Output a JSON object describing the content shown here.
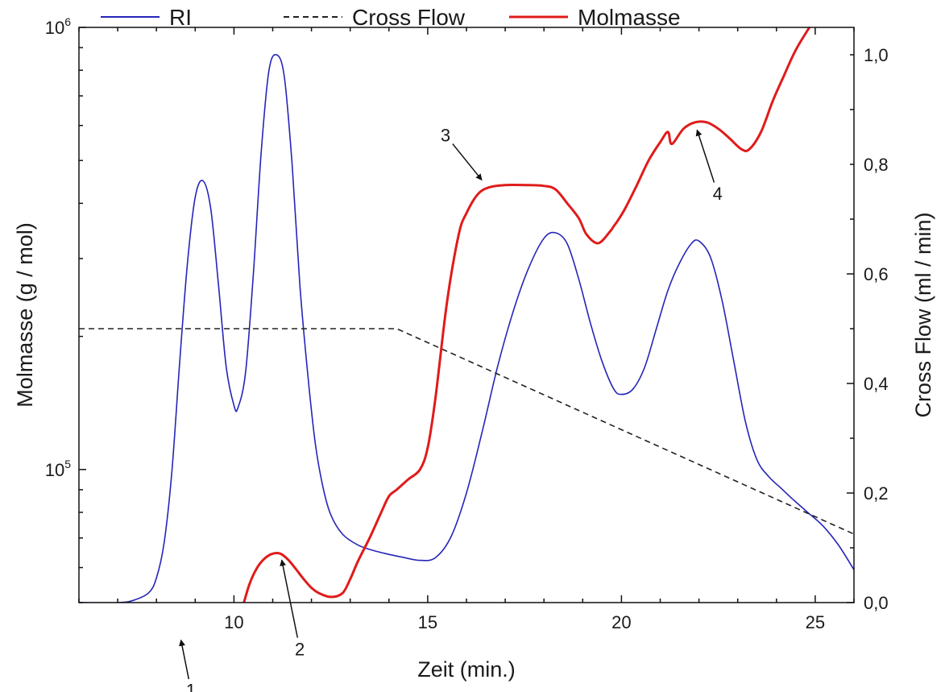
{
  "chart_data": {
    "type": "line",
    "title": "",
    "xlabel": "Zeit (min.)",
    "ylabel_left": "Molmasse (g / mol)",
    "ylabel_right": "Cross Flow (ml / min)",
    "xlim": [
      6,
      26
    ],
    "ylim_left": [
      50000,
      1000000
    ],
    "ylim_left_scale": "log",
    "ylim_right": [
      0,
      1.05
    ],
    "x_ticks": [
      10,
      15,
      20,
      25
    ],
    "x_tick_labels": [
      "10",
      "15",
      "20",
      "25"
    ],
    "y_left_ticks": [
      100000,
      1000000
    ],
    "y_left_tick_labels": [
      {
        "base": "10",
        "exp": "5"
      },
      {
        "base": "10",
        "exp": "6"
      }
    ],
    "y_right_ticks": [
      0,
      0.2,
      0.4,
      0.6,
      0.8,
      1.0
    ],
    "y_right_tick_labels": [
      "0,0",
      "0,2",
      "0,4",
      "0,6",
      "0,8",
      "1,0"
    ],
    "grid": false,
    "legend_position": "top",
    "legend": [
      {
        "name": "RI",
        "color": "#2525b8",
        "style": "solid"
      },
      {
        "name": "Cross Flow",
        "color": "#222222",
        "style": "dashed"
      },
      {
        "name": "Molmasse",
        "color": "#e01b1b",
        "style": "solid"
      }
    ],
    "series": [
      {
        "name": "RI",
        "axis": "right",
        "color": "#2525b8",
        "x": [
          6.0,
          7.0,
          7.4,
          7.8,
          8.0,
          8.2,
          8.4,
          8.6,
          8.8,
          9.0,
          9.2,
          9.4,
          9.6,
          9.8,
          10.0,
          10.1,
          10.3,
          10.5,
          10.7,
          10.9,
          11.1,
          11.3,
          11.5,
          11.7,
          11.9,
          12.1,
          12.3,
          12.5,
          12.8,
          13.2,
          13.6,
          14.0,
          14.4,
          14.8,
          15.2,
          15.6,
          16.0,
          16.4,
          16.8,
          17.2,
          17.6,
          18.0,
          18.3,
          18.6,
          18.9,
          19.2,
          19.5,
          19.8,
          20.0,
          20.3,
          20.6,
          20.9,
          21.2,
          21.5,
          21.8,
          22.0,
          22.3,
          22.6,
          22.9,
          23.2,
          23.5,
          23.8,
          24.1,
          24.4,
          24.8,
          25.2,
          25.6,
          26.0
        ],
        "y": [
          0.0,
          0.0,
          0.004,
          0.018,
          0.045,
          0.11,
          0.24,
          0.44,
          0.62,
          0.74,
          0.77,
          0.72,
          0.58,
          0.43,
          0.36,
          0.355,
          0.42,
          0.6,
          0.82,
          0.97,
          1.0,
          0.96,
          0.8,
          0.58,
          0.42,
          0.29,
          0.21,
          0.16,
          0.125,
          0.105,
          0.095,
          0.088,
          0.082,
          0.077,
          0.082,
          0.12,
          0.2,
          0.31,
          0.43,
          0.53,
          0.61,
          0.665,
          0.675,
          0.655,
          0.59,
          0.51,
          0.44,
          0.39,
          0.38,
          0.39,
          0.43,
          0.5,
          0.57,
          0.62,
          0.655,
          0.66,
          0.63,
          0.55,
          0.44,
          0.33,
          0.26,
          0.23,
          0.21,
          0.19,
          0.165,
          0.14,
          0.105,
          0.06
        ]
      },
      {
        "name": "Cross Flow",
        "axis": "right",
        "color": "#222222",
        "x": [
          6.0,
          14.2,
          26.0
        ],
        "y": [
          0.5,
          0.5,
          0.125
        ]
      },
      {
        "name": "Molmasse",
        "axis": "left",
        "color": "#e01b1b",
        "x": [
          8.0,
          8.08,
          8.15,
          8.25,
          8.4,
          8.55,
          8.7,
          8.9,
          9.1,
          9.3,
          9.5,
          9.7,
          9.85,
          10.0,
          10.2,
          10.4,
          10.6,
          10.8,
          11.0,
          11.2,
          11.4,
          11.6,
          11.8,
          12.0,
          12.2,
          12.5,
          12.8,
          13.0,
          13.2,
          13.5,
          13.8,
          14.0,
          14.2,
          14.5,
          14.8,
          15.0,
          15.2,
          15.5,
          15.8,
          16.0,
          16.3,
          16.6,
          17.0,
          17.5,
          18.0,
          18.3,
          18.6,
          18.9,
          19.1,
          19.4,
          19.7,
          19.8,
          19.9,
          20.1,
          20.4,
          20.7,
          21.0,
          21.2,
          21.3,
          21.6,
          21.9,
          22.2,
          22.5,
          22.8,
          23.1,
          23.3,
          23.6,
          23.9,
          24.2,
          24.5,
          24.85
        ],
        "y": [
          40000,
          42500,
          39500,
          39000,
          41000,
          42800,
          43000,
          42500,
          41500,
          40000,
          39000,
          37800,
          38500,
          42000,
          48000,
          55000,
          60000,
          63000,
          64500,
          64500,
          62500,
          59500,
          56500,
          54000,
          52500,
          51500,
          52500,
          56500,
          62000,
          70000,
          80000,
          87000,
          90000,
          95000,
          100000,
          112000,
          145000,
          240000,
          340000,
          380000,
          420000,
          435000,
          440000,
          440000,
          438000,
          430000,
          400000,
          370000,
          340000,
          325000,
          345000,
          355000,
          365000,
          390000,
          440000,
          500000,
          550000,
          580000,
          545000,
          590000,
          610000,
          610000,
          590000,
          560000,
          530000,
          530000,
          580000,
          680000,
          780000,
          890000,
          1000000
        ]
      }
    ],
    "annotations": [
      {
        "label": "1",
        "x": 8.6,
        "y": 42500
      },
      {
        "label": "2",
        "x": 11.2,
        "y": 64500
      },
      {
        "label": "3",
        "x": 16.5,
        "y": 440000
      },
      {
        "label": "4",
        "x": 21.9,
        "y": 605000
      }
    ]
  }
}
